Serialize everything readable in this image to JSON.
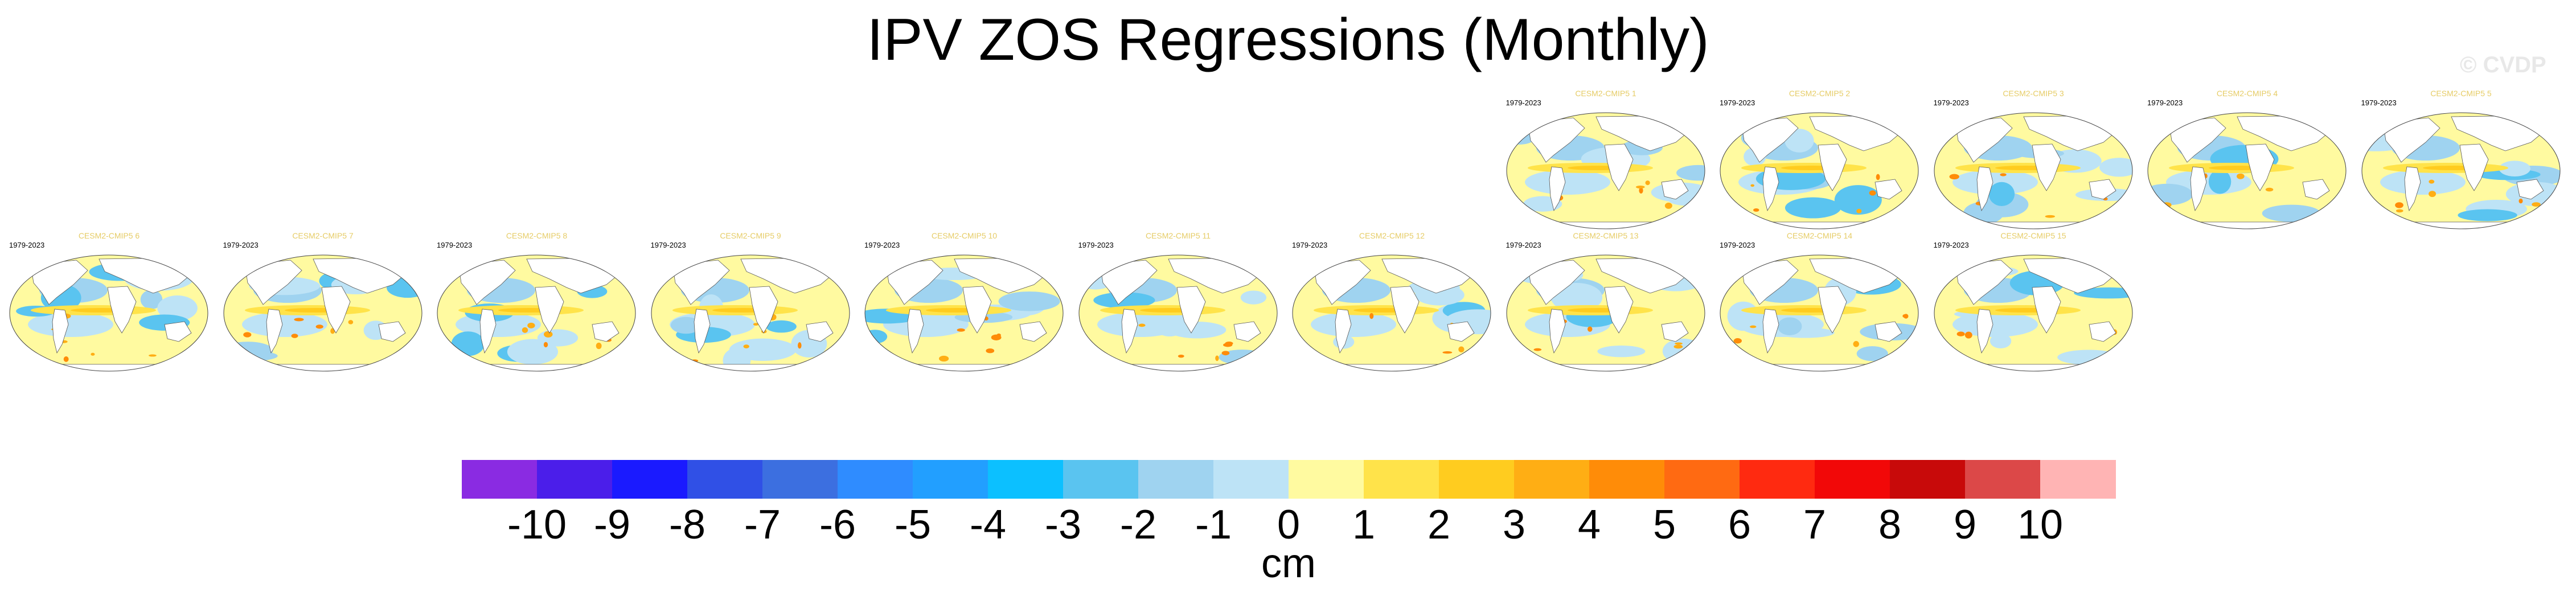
{
  "title": "IPV ZOS Regressions (Monthly)",
  "watermark": "© CVDP",
  "period": "1979-2023",
  "units": "cm",
  "chart_data": {
    "type": "heatmap",
    "title": "IPV ZOS Regressions (Monthly)",
    "panels": [
      {
        "title": "CESM2-CMIP5 1",
        "period": "1979-2023",
        "row": 1,
        "col": 8
      },
      {
        "title": "CESM2-CMIP5 2",
        "period": "1979-2023",
        "row": 1,
        "col": 9
      },
      {
        "title": "CESM2-CMIP5 3",
        "period": "1979-2023",
        "row": 1,
        "col": 10
      },
      {
        "title": "CESM2-CMIP5 4",
        "period": "1979-2023",
        "row": 1,
        "col": 11
      },
      {
        "title": "CESM2-CMIP5 5",
        "period": "1979-2023",
        "row": 1,
        "col": 12
      },
      {
        "title": "CESM2-CMIP5 6",
        "period": "1979-2023",
        "row": 2,
        "col": 1
      },
      {
        "title": "CESM2-CMIP5 7",
        "period": "1979-2023",
        "row": 2,
        "col": 2
      },
      {
        "title": "CESM2-CMIP5 8",
        "period": "1979-2023",
        "row": 2,
        "col": 3
      },
      {
        "title": "CESM2-CMIP5 9",
        "period": "1979-2023",
        "row": 2,
        "col": 4
      },
      {
        "title": "CESM2-CMIP5 10",
        "period": "1979-2023",
        "row": 2,
        "col": 5
      },
      {
        "title": "CESM2-CMIP5 11",
        "period": "1979-2023",
        "row": 2,
        "col": 6
      },
      {
        "title": "CESM2-CMIP5 12",
        "period": "1979-2023",
        "row": 2,
        "col": 7
      },
      {
        "title": "CESM2-CMIP5 13",
        "period": "1979-2023",
        "row": 2,
        "col": 8
      },
      {
        "title": "CESM2-CMIP5 14",
        "period": "1979-2023",
        "row": 2,
        "col": 9
      },
      {
        "title": "CESM2-CMIP5 15",
        "period": "1979-2023",
        "row": 2,
        "col": 10
      }
    ],
    "colorbar": {
      "label": "cm",
      "ticks": [
        "-10",
        "-9",
        "-8",
        "-7",
        "-6",
        "-5",
        "-4",
        "-3",
        "-2",
        "-1",
        "0",
        "1",
        "2",
        "3",
        "4",
        "5",
        "6",
        "7",
        "8",
        "9",
        "10"
      ],
      "colors": [
        "#8a2be2",
        "#4b1eea",
        "#1a1aff",
        "#3050e6",
        "#3c6fe0",
        "#2f8cff",
        "#229fff",
        "#0cc0ff",
        "#5ac4f0",
        "#9fd3f0",
        "#bde3f6",
        "#fffaa0",
        "#ffe34a",
        "#ffcc1f",
        "#ffae14",
        "#ff8c08",
        "#ff6a12",
        "#ff2a10",
        "#f20808",
        "#c80a0a",
        "#dc4848",
        "#ffb4b4"
      ]
    }
  }
}
